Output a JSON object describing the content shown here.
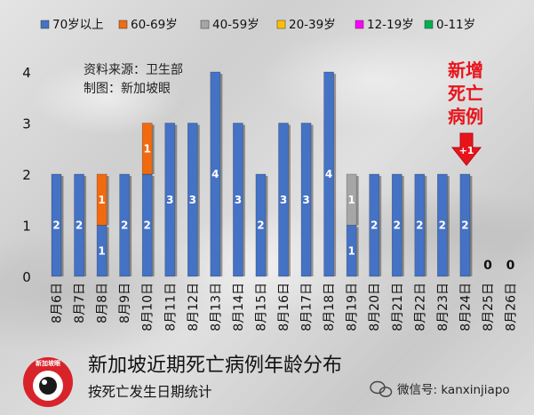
{
  "chart_data": {
    "type": "bar",
    "stacked": true,
    "source_lines": [
      "资料来源：卫生部",
      "制图：新加坡眼"
    ],
    "title": "新加坡近期死亡病例年龄分布",
    "subtitle": "按死亡发生日期统计",
    "categories": [
      "8月6日",
      "8月7日",
      "8月8日",
      "8月9日",
      "8月10日",
      "8月11日",
      "8月12日",
      "8月13日",
      "8月14日",
      "8月15日",
      "8月16日",
      "8月17日",
      "8月18日",
      "8月19日",
      "8月20日",
      "8月21日",
      "8月22日",
      "8月23日",
      "8月24日",
      "8月25日",
      "8月26日"
    ],
    "ylim": [
      0,
      4
    ],
    "yticks": [
      0,
      1,
      2,
      3,
      4
    ],
    "series": [
      {
        "name": "70岁以上",
        "color": "#4472c4",
        "values": [
          2,
          2,
          1,
          2,
          2,
          3,
          3,
          4,
          3,
          2,
          3,
          3,
          4,
          1,
          2,
          2,
          2,
          2,
          2,
          0,
          0
        ]
      },
      {
        "name": "60-69岁",
        "color": "#f26a0f",
        "values": [
          0,
          0,
          1,
          0,
          1,
          0,
          0,
          0,
          0,
          0,
          0,
          0,
          0,
          0,
          0,
          0,
          0,
          0,
          0,
          0,
          0
        ]
      },
      {
        "name": "40-59岁",
        "color": "#a6a6a6",
        "values": [
          0,
          0,
          0,
          0,
          0,
          0,
          0,
          0,
          0,
          0,
          0,
          0,
          0,
          1,
          0,
          0,
          0,
          0,
          0,
          0,
          0
        ]
      },
      {
        "name": "20-39岁",
        "color": "#ffc000",
        "values": [
          0,
          0,
          0,
          0,
          0,
          0,
          0,
          0,
          0,
          0,
          0,
          0,
          0,
          0,
          0,
          0,
          0,
          0,
          0,
          0,
          0
        ]
      },
      {
        "name": "12-19岁",
        "color": "#ff00ff",
        "values": [
          0,
          0,
          0,
          0,
          0,
          0,
          0,
          0,
          0,
          0,
          0,
          0,
          0,
          0,
          0,
          0,
          0,
          0,
          0,
          0,
          0
        ]
      },
      {
        "name": "0-11岁",
        "color": "#00b050",
        "values": [
          0,
          0,
          0,
          0,
          0,
          0,
          0,
          0,
          0,
          0,
          0,
          0,
          0,
          0,
          0,
          0,
          0,
          0,
          0,
          0,
          0
        ]
      }
    ],
    "zero_labels": [
      "0",
      "0"
    ],
    "annotation": {
      "lines": [
        "新增",
        "死亡",
        "病例"
      ],
      "arrow_label": "+1",
      "category": "8月24日",
      "color": "#e8141c"
    }
  },
  "footer": {
    "logo_text": "新加坡眼",
    "wechat": "微信号: kanxinjiapo"
  }
}
